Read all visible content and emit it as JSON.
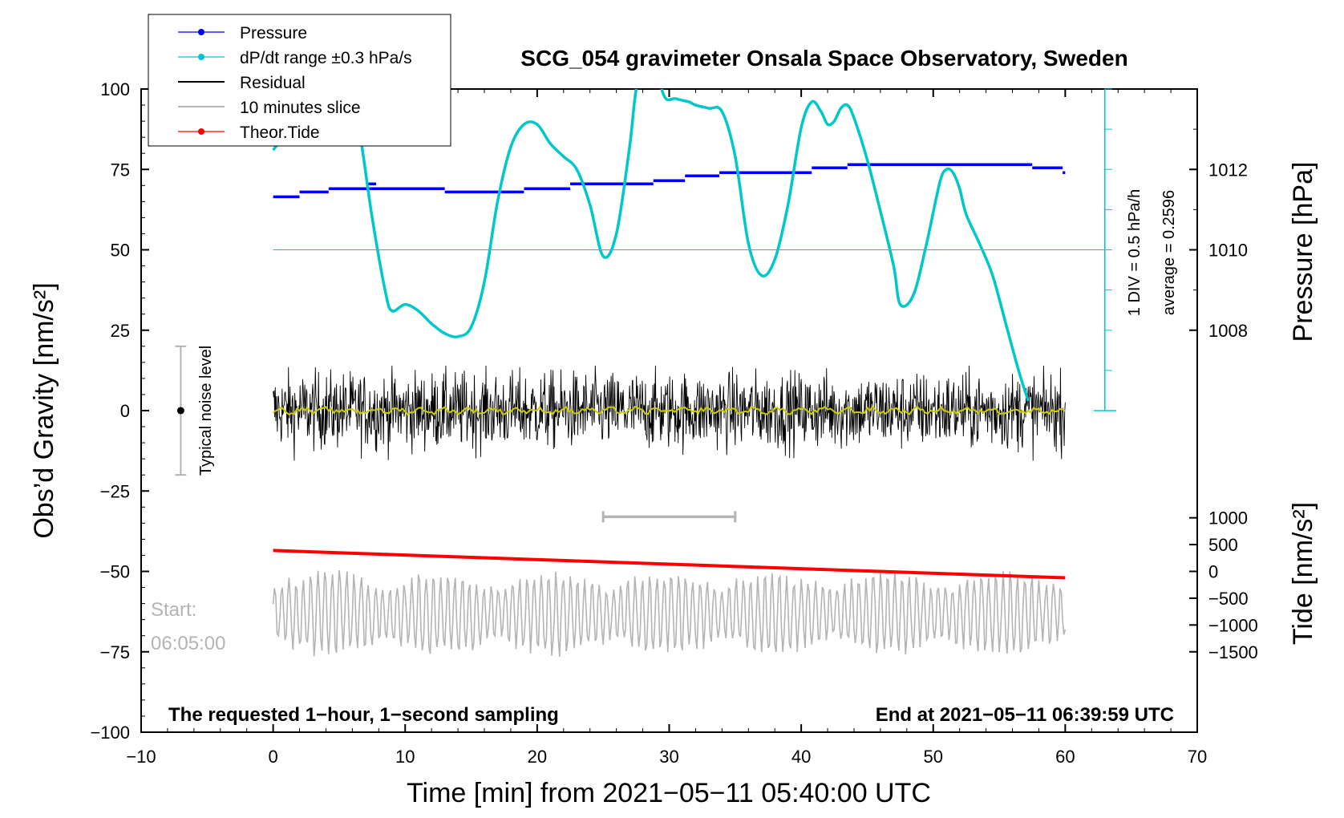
{
  "chart_data": {
    "type": "line",
    "title": "SCG_054 gravimeter Onsala Space Observatory, Sweden",
    "xlabel": "Time [min] from 2021−05−11 05:40:00 UTC",
    "ylabel_left": "Obs’d Gravity [nm/s²]",
    "ylabel_right_top": "Pressure [hPa]",
    "ylabel_right_bottom": "Tide [nm/s²]",
    "xlim": [
      -10,
      70
    ],
    "ylim_left": [
      -100,
      100
    ],
    "x_ticks": [
      -10,
      0,
      10,
      20,
      30,
      40,
      50,
      60,
      70
    ],
    "x_tick_labels": [
      "−10",
      "0",
      "10",
      "20",
      "30",
      "40",
      "50",
      "60",
      "70"
    ],
    "y_left_ticks": [
      -100,
      -75,
      -50,
      -25,
      0,
      25,
      50,
      75,
      100
    ],
    "y_left_tick_labels": [
      "−100",
      "−75",
      "−50",
      "−25",
      "0",
      "25",
      "50",
      "75",
      "100"
    ],
    "pressure_ticks": [
      1008,
      1010,
      1012
    ],
    "pressure_tick_labels": [
      "1008",
      "1010",
      "1012"
    ],
    "pressure_axis": {
      "value_at_left_50": 1010,
      "hpa_per_25_units": 2
    },
    "tide_ticks": [
      -1500,
      -1000,
      -500,
      0,
      500,
      1000
    ],
    "tide_tick_labels": [
      "−1500",
      "−1000",
      "−500",
      "0",
      "500",
      "1000"
    ],
    "tide_axis": {
      "value_at_left_minus50": 0,
      "per_25_units": 1500
    },
    "legend": [
      {
        "label": "Pressure",
        "color": "#0000ff",
        "marker": true
      },
      {
        "label": "dP/dt range ±0.3 hPa/s",
        "color": "#00c8c8",
        "marker": true
      },
      {
        "label": "Residual",
        "color": "#000000",
        "marker": false
      },
      {
        "label": "10 minutes slice",
        "color": "#b4b4b4",
        "marker": false
      },
      {
        "label": "Theor.Tide",
        "color": "#ff0000",
        "marker": true
      }
    ],
    "series": [
      {
        "name": "Pressure",
        "color": "#0000ff",
        "segments": [
          {
            "x0": 0,
            "x1": 2,
            "y": 66.5
          },
          {
            "x0": 2,
            "x1": 4.2,
            "y": 68
          },
          {
            "x0": 4.2,
            "x1": 13,
            "y": 69
          },
          {
            "x0": 7.2,
            "x1": 7.8,
            "y": 70.5
          },
          {
            "x0": 13,
            "x1": 19,
            "y": 68
          },
          {
            "x0": 19,
            "x1": 22.5,
            "y": 69
          },
          {
            "x0": 22.5,
            "x1": 28.8,
            "y": 70.5
          },
          {
            "x0": 28.8,
            "x1": 31.2,
            "y": 71.5
          },
          {
            "x0": 31.2,
            "x1": 33.8,
            "y": 73
          },
          {
            "x0": 33.8,
            "x1": 40.8,
            "y": 74
          },
          {
            "x0": 40.8,
            "x1": 43.5,
            "y": 75.5
          },
          {
            "x0": 43.5,
            "x1": 57.5,
            "y": 76.5
          },
          {
            "x0": 57.5,
            "x1": 59.8,
            "y": 75.5
          },
          {
            "x0": 59.8,
            "x1": 60,
            "y": 74
          }
        ]
      },
      {
        "name": "dP/dt range ±0.3 hPa/s",
        "color": "#00c8c8",
        "x": [
          0,
          2,
          4,
          5.5,
          6.5,
          7.5,
          8.5,
          9,
          10,
          11,
          12,
          13,
          14,
          15,
          16,
          17,
          18,
          19,
          20,
          21,
          22,
          23,
          24,
          25,
          26,
          27,
          27.5,
          28.5,
          29.5,
          30.5,
          31.5,
          32,
          33,
          34,
          35,
          36,
          37,
          38,
          39,
          40,
          40.8,
          41.5,
          42,
          42.5,
          43,
          43.5,
          44,
          45,
          46,
          47,
          47.5,
          48.5,
          49.5,
          50.5,
          51,
          51.5,
          52,
          52.5,
          53.5,
          54.5,
          55.5,
          56.5,
          57.2
        ],
        "y": [
          81,
          93,
          118,
          107,
          88,
          60,
          37,
          31,
          33,
          31,
          27,
          24,
          23,
          26,
          40,
          65,
          82,
          89,
          89,
          83,
          79,
          75,
          64,
          48,
          55,
          82,
          100,
          122,
          99,
          97,
          96,
          95,
          94,
          93,
          79,
          52,
          42,
          47,
          64,
          88,
          96,
          93,
          89,
          90,
          94,
          95,
          91,
          78,
          62,
          45,
          33,
          36,
          52,
          71,
          75,
          74,
          69,
          61,
          52,
          42,
          27,
          12,
          3
        ]
      },
      {
        "name": "Residual",
        "color": "#000000",
        "x_range": [
          0,
          60
        ],
        "typical_amplitude": 8,
        "extreme_range": [
          -16,
          14
        ]
      },
      {
        "name": "10 minutes slice",
        "color": "#b4b4b4",
        "x_range": [
          0,
          60
        ],
        "center": -63,
        "extreme_range": [
          -78,
          -47
        ]
      },
      {
        "name": "Theor.Tide",
        "color": "#ff0000",
        "x": [
          0,
          60
        ],
        "y": [
          -43.5,
          -52
        ]
      }
    ],
    "smoothed_residual_color": "#cccc00",
    "reference_line": {
      "y": 50,
      "color": "#00c8c8"
    },
    "dpdt_scale_annotation": "1 DIV = 0.5 hPa/h",
    "average_annotation": "average = 0.2596",
    "noise_level_label": "Typical noise level",
    "noise_level_range": [
      -20,
      20
    ],
    "slice_bracket": {
      "x0": 25,
      "x1": 35,
      "y": -33
    },
    "footer_left": "The requested 1−hour, 1−second sampling",
    "footer_right": "End at 2021−05−11 06:39:59 UTC",
    "start_label": "Start:",
    "start_time": "06:05:00"
  }
}
